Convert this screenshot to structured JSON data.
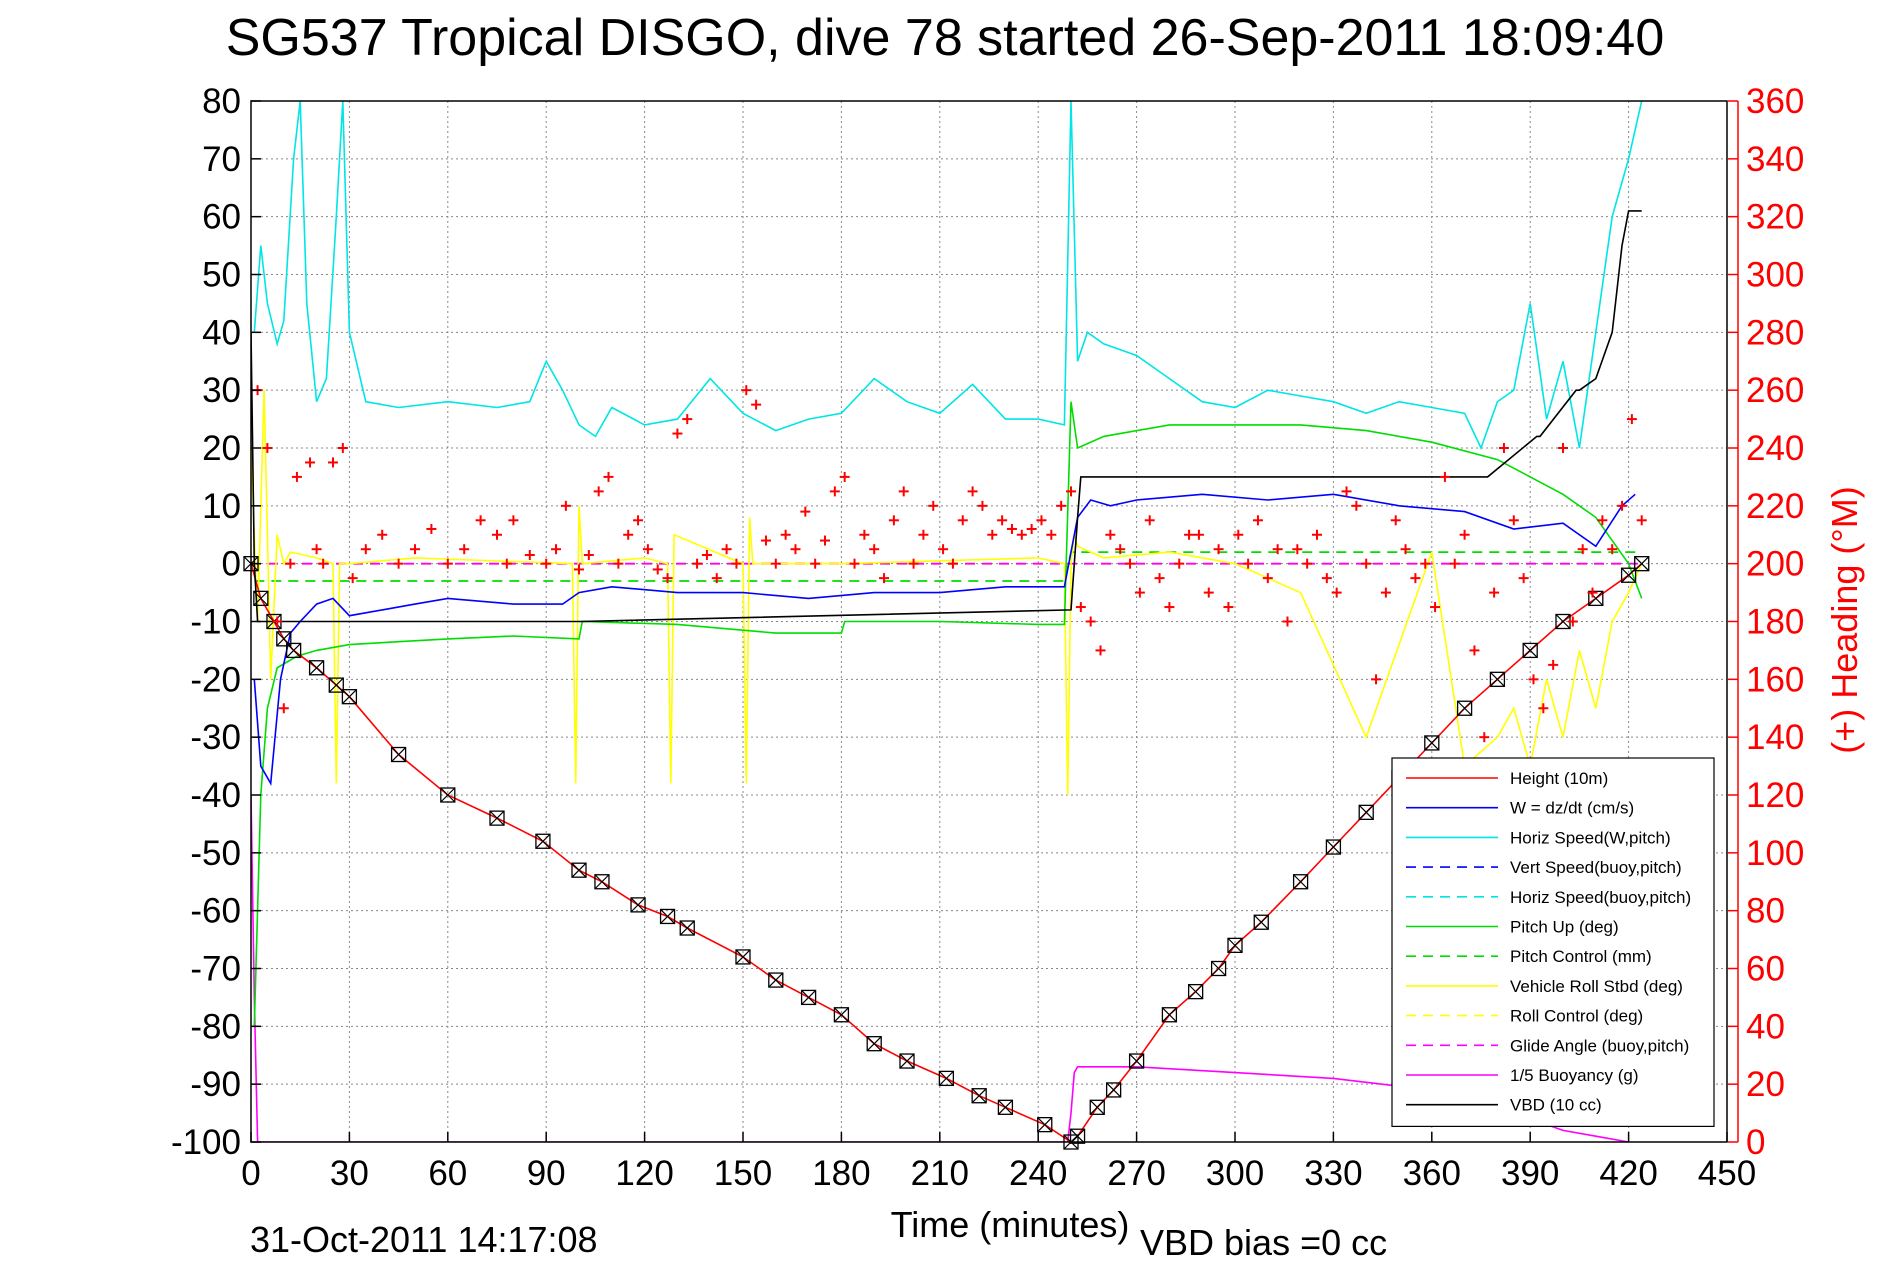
{
  "chart_data": {
    "type": "line",
    "title": "SG537 Tropical DISGO, dive 78 started 26-Sep-2011 18:09:40",
    "xlabel": "Time (minutes)",
    "ylabel": "",
    "y2label": "(+) Heading (°M)",
    "xlim": [
      0,
      450
    ],
    "ylim": [
      -100,
      80
    ],
    "y2lim": [
      0,
      360
    ],
    "x_ticks": [
      "0",
      "30",
      "60",
      "90",
      "120",
      "150",
      "180",
      "210",
      "240",
      "270",
      "300",
      "330",
      "360",
      "390",
      "420",
      "450"
    ],
    "y_ticks": [
      "80",
      "70",
      "60",
      "50",
      "40",
      "30",
      "20",
      "10",
      "0",
      "-10",
      "-20",
      "-30",
      "-40",
      "-50",
      "-60",
      "-70",
      "-80",
      "-90",
      "-100"
    ],
    "y2_ticks": [
      "360",
      "340",
      "320",
      "300",
      "280",
      "260",
      "240",
      "220",
      "200",
      "180",
      "160",
      "140",
      "120",
      "100",
      "80",
      "60",
      "40",
      "20",
      "0"
    ],
    "grid": true,
    "legend_position": "bottom-right",
    "footer_left": "31-Oct-2011 14:17:08",
    "footer_right": "VBD bias =0 cc",
    "series": [
      {
        "name": "Height (10m)",
        "color": "#ff0000",
        "style": "solid",
        "x": [
          0,
          3,
          7,
          10,
          13,
          20,
          26,
          30,
          45,
          60,
          75,
          89,
          100,
          107,
          118,
          127,
          133,
          150,
          160,
          170,
          180,
          190,
          200,
          212,
          222,
          230,
          242,
          250,
          252,
          258,
          263,
          270,
          280,
          288,
          295,
          300,
          308,
          320,
          330,
          340,
          350,
          360,
          370,
          380,
          390,
          400,
          410,
          420,
          424
        ],
        "y": [
          0,
          -6,
          -10,
          -13,
          -15,
          -18,
          -21,
          -23,
          -33,
          -40,
          -44,
          -48,
          -53,
          -55,
          -59,
          -61,
          -63,
          -68,
          -72,
          -75,
          -78,
          -83,
          -86,
          -89,
          -92,
          -94,
          -97,
          -100,
          -99,
          -94,
          -91,
          -86,
          -78,
          -74,
          -70,
          -66,
          -62,
          -55,
          -49,
          -43,
          -37,
          -31,
          -25,
          -20,
          -15,
          -10,
          -6,
          -2,
          0
        ]
      },
      {
        "name": "W = dz/dt (cm/s)",
        "color": "#0000ff",
        "style": "solid",
        "x": [
          1,
          3,
          6,
          9,
          12,
          15,
          20,
          25,
          30,
          40,
          50,
          60,
          80,
          95,
          100,
          110,
          130,
          150,
          170,
          190,
          210,
          230,
          248,
          252,
          256,
          262,
          270,
          290,
          310,
          330,
          350,
          370,
          385,
          400,
          410,
          418,
          422
        ],
        "y": [
          -20,
          -35,
          -38,
          -20,
          -12,
          -10,
          -7,
          -6,
          -9,
          -8,
          -7,
          -6,
          -7,
          -7,
          -5,
          -4,
          -5,
          -5,
          -6,
          -5,
          -5,
          -4,
          -4,
          8,
          11,
          10,
          11,
          12,
          11,
          12,
          10,
          9,
          6,
          7,
          3,
          10,
          12
        ]
      },
      {
        "name": "Horiz Speed(W,pitch)",
        "color": "#00e5e5",
        "style": "solid",
        "x": [
          1,
          3,
          5,
          8,
          10,
          13,
          15,
          17,
          20,
          23,
          26,
          28,
          30,
          35,
          45,
          60,
          75,
          85,
          90,
          95,
          100,
          105,
          110,
          120,
          130,
          140,
          150,
          160,
          170,
          180,
          190,
          200,
          210,
          220,
          230,
          240,
          248,
          250,
          252,
          255,
          260,
          270,
          280,
          290,
          300,
          310,
          320,
          330,
          340,
          350,
          360,
          370,
          375,
          380,
          385,
          390,
          395,
          400,
          405,
          410,
          415,
          420,
          424
        ],
        "y": [
          40,
          55,
          45,
          38,
          42,
          70,
          80,
          45,
          28,
          32,
          60,
          80,
          40,
          28,
          27,
          28,
          27,
          28,
          35,
          30,
          24,
          22,
          27,
          24,
          25,
          32,
          26,
          23,
          25,
          26,
          32,
          28,
          26,
          31,
          25,
          25,
          24,
          80,
          35,
          40,
          38,
          36,
          32,
          28,
          27,
          30,
          29,
          28,
          26,
          28,
          27,
          26,
          20,
          28,
          30,
          45,
          25,
          35,
          20,
          40,
          60,
          70,
          80
        ]
      },
      {
        "name": "Vert Speed(buoy,pitch)",
        "color": "#0000ff",
        "style": "dashed",
        "x": [],
        "y": []
      },
      {
        "name": "Horiz Speed(buoy,pitch)",
        "color": "#00e5e5",
        "style": "dashed",
        "x": [],
        "y": []
      },
      {
        "name": "Pitch Up (deg)",
        "color": "#00dd00",
        "style": "solid",
        "x": [
          1,
          3,
          5,
          8,
          11,
          14,
          20,
          30,
          45,
          60,
          80,
          100,
          101,
          130,
          160,
          180,
          181,
          210,
          240,
          248,
          250,
          252,
          260,
          280,
          300,
          320,
          340,
          360,
          380,
          390,
          400,
          410,
          420,
          424
        ],
        "y": [
          -80,
          -40,
          -25,
          -18,
          -17,
          -16,
          -15,
          -14,
          -13.5,
          -13,
          -12.5,
          -13,
          -10,
          -10.5,
          -12,
          -12,
          -10,
          -10,
          -10.5,
          -10.5,
          28,
          20,
          22,
          24,
          24,
          24,
          23,
          21,
          18,
          15,
          12,
          8,
          0,
          -6
        ]
      },
      {
        "name": "Pitch Control (mm)",
        "color": "#00dd00",
        "style": "dashed",
        "x": [
          1,
          248,
          250,
          424
        ],
        "y": [
          -3,
          -3,
          2,
          2
        ]
      },
      {
        "name": "Vehicle Roll Stbd (deg)",
        "color": "#ffff00",
        "style": "solid",
        "x": [
          0,
          2,
          4,
          6,
          8,
          10,
          12,
          20,
          25,
          26,
          27,
          30,
          50,
          98,
          99,
          100,
          101,
          120,
          127,
          128,
          129,
          150,
          151,
          152,
          153,
          180,
          240,
          248,
          249,
          250,
          251,
          252,
          260,
          280,
          300,
          320,
          340,
          360,
          370,
          380,
          385,
          390,
          395,
          400,
          405,
          410,
          415,
          420,
          424
        ],
        "y": [
          20,
          -10,
          30,
          -20,
          5,
          0,
          2,
          1,
          0,
          -38,
          0,
          0,
          1,
          0,
          -38,
          10,
          0,
          1,
          0,
          -38,
          5,
          0,
          -38,
          8,
          0,
          0,
          1,
          0,
          -40,
          0,
          5,
          3,
          1,
          2,
          0,
          -5,
          -30,
          2,
          -35,
          -30,
          -25,
          -35,
          -20,
          -30,
          -15,
          -25,
          -10,
          -5,
          0
        ]
      },
      {
        "name": "Roll Control (deg)",
        "color": "#ffff00",
        "style": "dashed",
        "x": [
          0,
          424
        ],
        "y": [
          0,
          0
        ]
      },
      {
        "name": "Glide Angle (buoy,pitch)",
        "color": "#ff00ff",
        "style": "dashed",
        "x": [
          0,
          424
        ],
        "y": [
          0,
          0
        ]
      },
      {
        "name": "1/5 Buoyancy (g)",
        "color": "#ff00ff",
        "style": "solid",
        "x": [
          0,
          1,
          2,
          248,
          249,
          250,
          251,
          252,
          255,
          270,
          300,
          330,
          360,
          380,
          390,
          400,
          410,
          420
        ],
        "y": [
          -40,
          -75,
          -100,
          -100,
          -100,
          -95,
          -88,
          -87,
          -87,
          -87,
          -88,
          -89,
          -91,
          -93,
          -96,
          -98,
          -99,
          -100
        ]
      },
      {
        "name": "VBD (10 cc)",
        "color": "#000000",
        "style": "solid",
        "x": [
          0,
          1,
          2,
          12,
          12.5,
          100,
          100.5,
          250,
          252,
          253,
          376,
          377,
          392,
          393,
          404,
          405,
          410,
          415,
          418,
          420,
          424
        ],
        "y": [
          40,
          0,
          -10,
          -10,
          -10,
          -10,
          -10,
          -8,
          8,
          15,
          15,
          15,
          22,
          22,
          30,
          30,
          32,
          40,
          55,
          61,
          61
        ]
      }
    ],
    "heading_points": {
      "name": "(+) Heading (°M)",
      "color": "#ff0000",
      "marker": "+",
      "x": [
        2,
        5,
        8,
        10,
        12,
        14,
        18,
        20,
        22,
        25,
        28,
        31,
        35,
        40,
        45,
        50,
        55,
        60,
        65,
        70,
        75,
        78,
        80,
        85,
        90,
        93,
        96,
        100,
        103,
        106,
        109,
        112,
        115,
        118,
        121,
        124,
        127,
        130,
        133,
        136,
        139,
        142,
        145,
        148,
        151,
        154,
        157,
        160,
        163,
        166,
        169,
        172,
        175,
        178,
        181,
        184,
        187,
        190,
        193,
        196,
        199,
        202,
        205,
        208,
        211,
        214,
        217,
        220,
        223,
        226,
        229,
        232,
        235,
        238,
        241,
        244,
        247,
        250,
        253,
        256,
        259,
        262,
        265,
        268,
        271,
        274,
        277,
        280,
        283,
        286,
        289,
        292,
        295,
        298,
        301,
        304,
        307,
        310,
        313,
        316,
        319,
        322,
        325,
        328,
        331,
        334,
        337,
        340,
        343,
        346,
        349,
        352,
        355,
        358,
        361,
        364,
        367,
        370,
        373,
        376,
        379,
        382,
        385,
        388,
        391,
        394,
        397,
        400,
        403,
        406,
        409,
        412,
        415,
        418,
        421,
        424
      ],
      "y": [
        260,
        240,
        180,
        150,
        200,
        230,
        235,
        205,
        200,
        235,
        240,
        195,
        205,
        210,
        200,
        205,
        212,
        200,
        205,
        215,
        210,
        200,
        215,
        203,
        200,
        205,
        220,
        198,
        203,
        225,
        230,
        200,
        210,
        215,
        205,
        198,
        195,
        245,
        250,
        200,
        203,
        195,
        205,
        200,
        260,
        255,
        208,
        200,
        210,
        205,
        218,
        200,
        208,
        225,
        230,
        200,
        210,
        205,
        195,
        215,
        225,
        200,
        210,
        220,
        205,
        200,
        215,
        225,
        220,
        210,
        215,
        212,
        210,
        212,
        215,
        210,
        220,
        225,
        185,
        180,
        170,
        210,
        205,
        200,
        190,
        215,
        195,
        185,
        200,
        210,
        210,
        190,
        205,
        185,
        210,
        200,
        215,
        195,
        205,
        180,
        205,
        200,
        210,
        195,
        190,
        225,
        220,
        200,
        160,
        190,
        215,
        205,
        195,
        200,
        185,
        230,
        200,
        210,
        170,
        140,
        190,
        240,
        215,
        195,
        160,
        150,
        165,
        240,
        180,
        205,
        190,
        215,
        205,
        220,
        250,
        215
      ]
    }
  }
}
